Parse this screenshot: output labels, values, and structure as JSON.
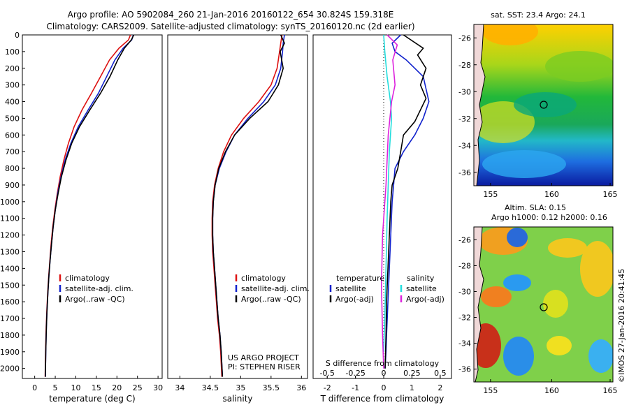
{
  "header": {
    "line1": "Argo profile: AO 5902084_260 21-Jan-2016 20160122_654 30.824S 159.318E",
    "line2": "Climatology: CARS2009. Satellite-adjusted climatology: synTS_20160120.nc (2d earlier)"
  },
  "colors": {
    "climatology": "#dd1111",
    "satellite": "#1122cc",
    "argo": "#000000",
    "cyan": "#22dddd",
    "magenta": "#dd22dd"
  },
  "chart_data": [
    {
      "type": "line",
      "title": "",
      "xlabel": "temperature (deg C)",
      "ylabel": "",
      "xlim": [
        -3,
        31
      ],
      "ylim": [
        2060,
        0
      ],
      "xticks": [
        "0",
        "5",
        "10",
        "15",
        "20",
        "25",
        "30"
      ],
      "xtick_values": [
        0,
        5,
        10,
        15,
        20,
        25,
        30
      ],
      "yticks": [
        "0",
        "100",
        "200",
        "300",
        "400",
        "500",
        "600",
        "700",
        "800",
        "900",
        "1000",
        "1100",
        "1200",
        "1300",
        "1400",
        "1500",
        "1600",
        "1700",
        "1800",
        "1900",
        "2000"
      ],
      "ytick_values": [
        0,
        100,
        200,
        300,
        400,
        500,
        600,
        700,
        800,
        900,
        1000,
        1100,
        1200,
        1300,
        1400,
        1500,
        1600,
        1700,
        1800,
        1900,
        2000
      ],
      "legend": [
        "climatology",
        "satellite-adj. clim.",
        "Argo(..raw -QC)"
      ],
      "series": [
        {
          "name": "climatology",
          "color": "climatology",
          "x": [
            23.3,
            22.8,
            20.5,
            18.2,
            16.0,
            13.8,
            11.5,
            9.6,
            8.2,
            7.1,
            6.2,
            5.5,
            4.9,
            4.4,
            4.0,
            3.7,
            3.4,
            3.15,
            2.95,
            2.8,
            2.65,
            2.55
          ],
          "y": [
            0,
            30,
            80,
            150,
            250,
            350,
            450,
            550,
            650,
            750,
            850,
            950,
            1050,
            1150,
            1250,
            1350,
            1450,
            1550,
            1650,
            1750,
            1900,
            2050
          ]
        },
        {
          "name": "satellite-adj. clim.",
          "color": "satellite",
          "x": [
            24.0,
            23.6,
            21.5,
            19.5,
            17.5,
            15.5,
            13.0,
            10.6,
            8.8,
            7.4,
            6.4,
            5.6,
            5.0,
            4.5,
            4.1,
            3.75,
            3.45,
            3.2,
            3.0,
            2.85,
            2.7,
            2.6
          ],
          "y": [
            0,
            30,
            80,
            150,
            250,
            350,
            450,
            550,
            650,
            750,
            850,
            950,
            1050,
            1150,
            1250,
            1350,
            1450,
            1550,
            1650,
            1750,
            1900,
            2050
          ]
        },
        {
          "name": "Argo(..raw -QC)",
          "color": "argo",
          "x": [
            24.1,
            23.5,
            21.8,
            20.2,
            18.3,
            16.0,
            13.4,
            10.9,
            9.0,
            7.6,
            6.5,
            5.7,
            5.0,
            4.5,
            4.1,
            3.75,
            3.45,
            3.2,
            3.0,
            2.85,
            2.7,
            2.6
          ],
          "y": [
            0,
            30,
            80,
            150,
            250,
            350,
            450,
            550,
            650,
            750,
            850,
            950,
            1050,
            1150,
            1250,
            1350,
            1450,
            1550,
            1650,
            1750,
            1900,
            2050
          ]
        }
      ]
    },
    {
      "type": "line",
      "xlabel": "salinity",
      "xlim": [
        33.8,
        36.1
      ],
      "ylim": [
        2060,
        0
      ],
      "xticks": [
        "34",
        "34.5",
        "35",
        "35.5",
        "36"
      ],
      "xtick_values": [
        34,
        34.5,
        35,
        35.5,
        36
      ],
      "legend": [
        "climatology",
        "satellite-adj. clim.",
        "Argo(..raw -QC)"
      ],
      "annotation": [
        "US ARGO PROJECT",
        "PI: STEPHEN RISER"
      ],
      "series": [
        {
          "name": "climatology",
          "color": "climatology",
          "x": [
            35.68,
            35.66,
            35.64,
            35.6,
            35.5,
            35.3,
            35.05,
            34.85,
            34.72,
            34.63,
            34.57,
            34.54,
            34.53,
            34.53,
            34.54,
            34.56,
            34.58,
            34.6,
            34.62,
            34.65,
            34.67,
            34.69
          ],
          "y": [
            0,
            50,
            100,
            200,
            300,
            400,
            500,
            600,
            700,
            800,
            900,
            1000,
            1100,
            1200,
            1300,
            1400,
            1500,
            1600,
            1700,
            1800,
            1900,
            2050
          ]
        },
        {
          "name": "satellite-adj. clim.",
          "color": "satellite",
          "x": [
            35.72,
            35.7,
            35.69,
            35.66,
            35.57,
            35.38,
            35.12,
            34.9,
            34.76,
            34.65,
            34.58,
            34.55,
            34.54,
            34.54,
            34.55,
            34.57,
            34.59,
            34.61,
            34.63,
            34.66,
            34.68,
            34.7
          ],
          "y": [
            0,
            50,
            100,
            200,
            300,
            400,
            500,
            600,
            700,
            800,
            900,
            1000,
            1100,
            1200,
            1300,
            1400,
            1500,
            1600,
            1700,
            1800,
            1900,
            2050
          ]
        },
        {
          "name": "Argo(..raw -QC)",
          "color": "argo",
          "x": [
            35.66,
            35.72,
            35.65,
            35.7,
            35.62,
            35.45,
            35.15,
            34.9,
            34.75,
            34.64,
            34.58,
            34.55,
            34.54,
            34.54,
            34.55,
            34.57,
            34.59,
            34.61,
            34.63,
            34.66,
            34.68,
            34.7
          ],
          "y": [
            0,
            50,
            100,
            200,
            300,
            400,
            500,
            600,
            700,
            800,
            900,
            1000,
            1100,
            1200,
            1300,
            1400,
            1500,
            1600,
            1700,
            1800,
            1900,
            2050
          ]
        }
      ]
    },
    {
      "type": "line",
      "xlabel": "T difference from climatology",
      "x2label": "S difference from climatology",
      "xlim": [
        -2.5,
        2.4
      ],
      "x2lim": [
        -0.625,
        0.6
      ],
      "ylim": [
        2060,
        0
      ],
      "xticks": [
        "-2",
        "-1",
        "0",
        "1",
        "2"
      ],
      "xtick_values": [
        -2,
        -1,
        0,
        1,
        2
      ],
      "x2ticks": [
        "-0.5",
        "-0.25",
        "0",
        "0.25",
        "0.5"
      ],
      "x2tick_values": [
        -0.5,
        -0.25,
        0,
        0.25,
        0.5
      ],
      "legend_left": {
        "title": "temperature",
        "items": [
          "satellite",
          "Argo(-adj)"
        ]
      },
      "legend_right": {
        "title": "salinity",
        "items": [
          "satellite",
          "Argo(-adj)"
        ]
      },
      "series": [
        {
          "name": "temperature satellite",
          "color": "satellite",
          "x": [
            0.6,
            0.3,
            0.4,
            0.8,
            1.4,
            1.6,
            1.4,
            1.1,
            0.7,
            0.4,
            0.35,
            0.3,
            0.25,
            0.2,
            0.15,
            0.1,
            0.08,
            0.05
          ],
          "y": [
            0,
            50,
            100,
            150,
            250,
            400,
            500,
            600,
            700,
            800,
            900,
            1000,
            1200,
            1400,
            1600,
            1800,
            1900,
            2000
          ]
        },
        {
          "name": "temperature Argo(-adj)",
          "color": "argo",
          "x": [
            0.7,
            1.4,
            1.2,
            1.5,
            1.3,
            1.5,
            1.1,
            0.7,
            0.6,
            0.5,
            0.3,
            0.25,
            0.2,
            0.15,
            0.1,
            0.08,
            0.05
          ],
          "y": [
            0,
            80,
            120,
            200,
            300,
            380,
            520,
            600,
            700,
            800,
            900,
            1000,
            1200,
            1400,
            1600,
            1800,
            2000
          ]
        },
        {
          "name": "salinity satellite",
          "color": "cyan",
          "x": [
            0.0,
            0.01,
            0.03,
            0.06,
            0.07,
            0.05,
            0.04,
            0.03,
            0.02,
            0.01,
            0.0
          ],
          "y": [
            0,
            100,
            250,
            400,
            500,
            700,
            900,
            1100,
            1400,
            1700,
            1900
          ]
        },
        {
          "name": "salinity Argo(-adj)",
          "color": "magenta",
          "x": [
            0.03,
            0.12,
            0.08,
            0.1,
            0.07,
            0.04,
            0.02,
            -0.01,
            -0.02,
            -0.01,
            0.0
          ],
          "y": [
            0,
            60,
            150,
            300,
            400,
            600,
            900,
            1200,
            1500,
            1800,
            2000
          ]
        }
      ]
    }
  ],
  "maps": [
    {
      "title": "sat. SST: 23.4  Argo: 24.1",
      "yticks": [
        "-26",
        "-28",
        "-30",
        "-32",
        "-34",
        "-36"
      ],
      "xticks": [
        "155",
        "160",
        "165"
      ]
    },
    {
      "title1": "Altim. SLA: 0.15",
      "title2": "Argo h1000: 0.12 h2000: 0.16",
      "yticks": [
        "-26",
        "-28",
        "-30",
        "-32",
        "-34",
        "-36"
      ],
      "xticks": [
        "155",
        "160",
        "165"
      ]
    }
  ],
  "footer": "©IMOS 27-Jan-2016 20:41:45"
}
